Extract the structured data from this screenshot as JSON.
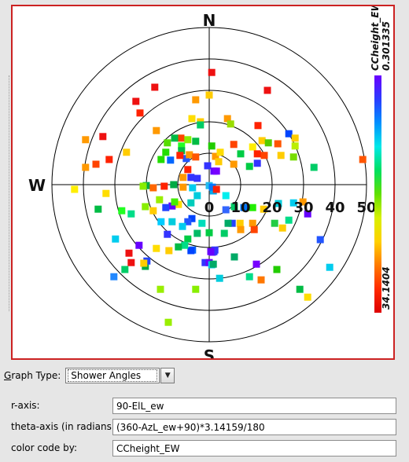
{
  "chart_data": {
    "type": "scatter",
    "coordinate_system": "polar",
    "r_ticks": [
      0,
      10,
      20,
      30,
      40,
      50
    ],
    "r_range": [
      0,
      50
    ],
    "compass_labels": {
      "north": "N",
      "south": "S",
      "west": "W"
    },
    "colorbar": {
      "title": "CCheight_EW",
      "max_label": "0.301335",
      "min_label": "34.1404",
      "gradient": [
        "#6a00ff",
        "#2a3cff",
        "#0090ff",
        "#00e8e8",
        "#00e060",
        "#60e000",
        "#d8f000",
        "#ffd000",
        "#ff7a00",
        "#ff2a00",
        "#dd0000"
      ]
    },
    "grid": true,
    "points": [
      {
        "x": 0.8,
        "y": 35.7,
        "c": "#ee1111"
      },
      {
        "x": 18.5,
        "y": 30.0,
        "c": "#ee1111"
      },
      {
        "x": -17.3,
        "y": 31.0,
        "c": "#ee1111"
      },
      {
        "x": -4.3,
        "y": 27.0,
        "c": "#ff9900"
      },
      {
        "x": -23.3,
        "y": 26.5,
        "c": "#ee1111"
      },
      {
        "x": -22.0,
        "y": 22.8,
        "c": "#ff2200"
      },
      {
        "x": 0.0,
        "y": 28.5,
        "c": "#ffcc00"
      },
      {
        "x": -5.5,
        "y": 21.0,
        "c": "#ffdd00"
      },
      {
        "x": -2.8,
        "y": 20.0,
        "c": "#ffcc00"
      },
      {
        "x": -2.8,
        "y": 19.0,
        "c": "#00cc66"
      },
      {
        "x": 5.8,
        "y": 21.0,
        "c": "#ff9900"
      },
      {
        "x": 6.8,
        "y": 19.3,
        "c": "#99dd00"
      },
      {
        "x": 15.5,
        "y": 18.8,
        "c": "#ff2200"
      },
      {
        "x": 25.3,
        "y": 16.2,
        "c": "#0044ff"
      },
      {
        "x": -16.8,
        "y": 17.2,
        "c": "#ff9900"
      },
      {
        "x": -9.0,
        "y": 14.8,
        "c": "#ff4400"
      },
      {
        "x": -11.0,
        "y": 14.8,
        "c": "#00bb44"
      },
      {
        "x": -8.8,
        "y": 12.3,
        "c": "#22ff22"
      },
      {
        "x": -13.3,
        "y": 13.3,
        "c": "#55dd00"
      },
      {
        "x": -6.8,
        "y": 14.3,
        "c": "#88ee00"
      },
      {
        "x": -4.3,
        "y": 13.8,
        "c": "#00bb44"
      },
      {
        "x": 0.8,
        "y": 12.3,
        "c": "#22cc00"
      },
      {
        "x": 7.8,
        "y": 12.8,
        "c": "#ff4400"
      },
      {
        "x": 13.8,
        "y": 12.0,
        "c": "#ffee00"
      },
      {
        "x": 16.8,
        "y": 14.0,
        "c": "#ffcc00"
      },
      {
        "x": 21.8,
        "y": 13.0,
        "c": "#ff5500"
      },
      {
        "x": 18.8,
        "y": 13.3,
        "c": "#55cc00"
      },
      {
        "x": 27.3,
        "y": 14.8,
        "c": "#ffcc00"
      },
      {
        "x": 27.3,
        "y": 12.3,
        "c": "#bbee00"
      },
      {
        "x": -8.8,
        "y": 10.8,
        "c": "#00bb44"
      },
      {
        "x": -13.8,
        "y": 10.3,
        "c": "#22dd00"
      },
      {
        "x": -15.3,
        "y": 8.0,
        "c": "#22dd00"
      },
      {
        "x": -12.3,
        "y": 7.8,
        "c": "#0066ff"
      },
      {
        "x": -7.3,
        "y": 8.3,
        "c": "#2255ff"
      },
      {
        "x": -6.3,
        "y": 9.5,
        "c": "#ff9900"
      },
      {
        "x": -9.3,
        "y": 9.3,
        "c": "#ff2200"
      },
      {
        "x": -4.3,
        "y": 8.8,
        "c": "#ff5500"
      },
      {
        "x": -6.8,
        "y": 4.8,
        "c": "#ff2200"
      },
      {
        "x": -5.8,
        "y": 2.3,
        "c": "#3333ff"
      },
      {
        "x": -3.8,
        "y": 2.0,
        "c": "#3333ff"
      },
      {
        "x": 2.0,
        "y": 9.0,
        "c": "#ff9900"
      },
      {
        "x": 3.5,
        "y": 10.3,
        "c": "#ffdd00"
      },
      {
        "x": 3.0,
        "y": 7.3,
        "c": "#ffcc00"
      },
      {
        "x": -0.5,
        "y": 6.0,
        "c": "#3333ff"
      },
      {
        "x": 1.5,
        "y": 4.3,
        "c": "#6600ff"
      },
      {
        "x": 2.3,
        "y": 4.3,
        "c": "#7700ff"
      },
      {
        "x": 7.8,
        "y": 6.5,
        "c": "#ff9900"
      },
      {
        "x": 10.0,
        "y": 9.8,
        "c": "#00cc44"
      },
      {
        "x": 15.3,
        "y": 9.8,
        "c": "#ff2200"
      },
      {
        "x": 17.5,
        "y": 9.3,
        "c": "#ff4400"
      },
      {
        "x": 22.8,
        "y": 9.3,
        "c": "#ffcc00"
      },
      {
        "x": 26.8,
        "y": 8.8,
        "c": "#77dd00"
      },
      {
        "x": 12.8,
        "y": 5.8,
        "c": "#00cc44"
      },
      {
        "x": 15.3,
        "y": 6.8,
        "c": "#3333ff"
      },
      {
        "x": 33.3,
        "y": 5.5,
        "c": "#00cc66"
      },
      {
        "x": 48.8,
        "y": 8.0,
        "c": "#ff5500"
      },
      {
        "x": -39.3,
        "y": 14.3,
        "c": "#ff9900"
      },
      {
        "x": -33.8,
        "y": 15.3,
        "c": "#ee1111"
      },
      {
        "x": -39.3,
        "y": 5.5,
        "c": "#ff9900"
      },
      {
        "x": -36.0,
        "y": 6.5,
        "c": "#ff4400"
      },
      {
        "x": -31.8,
        "y": 8.0,
        "c": "#ff2200"
      },
      {
        "x": -26.3,
        "y": 10.3,
        "c": "#ffcc00"
      },
      {
        "x": -42.8,
        "y": -1.5,
        "c": "#ffee00"
      },
      {
        "x": -32.8,
        "y": -2.8,
        "c": "#ffdd00"
      },
      {
        "x": -20.0,
        "y": -0.3,
        "c": "#00aa44"
      },
      {
        "x": -21.0,
        "y": -0.5,
        "c": "#88ee00"
      },
      {
        "x": -17.8,
        "y": -1.0,
        "c": "#ff6600"
      },
      {
        "x": -14.3,
        "y": -0.5,
        "c": "#ff2200"
      },
      {
        "x": -11.3,
        "y": 0.0,
        "c": "#00aa44"
      },
      {
        "x": -8.3,
        "y": -0.8,
        "c": "#ff9900"
      },
      {
        "x": -8.3,
        "y": 2.3,
        "c": "#ff9900"
      },
      {
        "x": -5.3,
        "y": -1.0,
        "c": "#00ccee"
      },
      {
        "x": -3.8,
        "y": -3.5,
        "c": "#00ccdd"
      },
      {
        "x": 0.0,
        "y": -0.3,
        "c": "#22bbee"
      },
      {
        "x": 1.3,
        "y": -2.0,
        "c": "#00aaee"
      },
      {
        "x": 1.0,
        "y": -0.8,
        "c": "#0077ff"
      },
      {
        "x": 2.3,
        "y": -1.5,
        "c": "#ff2200"
      },
      {
        "x": -5.8,
        "y": -5.8,
        "c": "#00ccbb"
      },
      {
        "x": -9.8,
        "y": -6.3,
        "c": "#ffdd00"
      },
      {
        "x": -11.8,
        "y": -6.8,
        "c": "#6600ff"
      },
      {
        "x": -13.8,
        "y": -7.3,
        "c": "#2244ff"
      },
      {
        "x": -17.8,
        "y": -8.3,
        "c": "#ffcc00"
      },
      {
        "x": -20.3,
        "y": -7.0,
        "c": "#88ee00"
      },
      {
        "x": -15.8,
        "y": -4.8,
        "c": "#99ee00"
      },
      {
        "x": -11.0,
        "y": -5.5,
        "c": "#44ee00"
      },
      {
        "x": -35.3,
        "y": -7.8,
        "c": "#00bb44"
      },
      {
        "x": -27.8,
        "y": -8.3,
        "c": "#22ff22"
      },
      {
        "x": -24.8,
        "y": -9.3,
        "c": "#00dd88"
      },
      {
        "x": 5.3,
        "y": -3.5,
        "c": "#00eeee"
      },
      {
        "x": 5.3,
        "y": -8.0,
        "c": "#3366ff"
      },
      {
        "x": 8.0,
        "y": -7.0,
        "c": "#00cc66"
      },
      {
        "x": 11.0,
        "y": -7.3,
        "c": "#0077ff"
      },
      {
        "x": 13.8,
        "y": -7.3,
        "c": "#22ee00"
      },
      {
        "x": 17.3,
        "y": -7.8,
        "c": "#ffcc00"
      },
      {
        "x": 22.0,
        "y": -6.0,
        "c": "#00ccdd"
      },
      {
        "x": 26.8,
        "y": -5.8,
        "c": "#00ccee"
      },
      {
        "x": 29.8,
        "y": -5.5,
        "c": "#ff9900"
      },
      {
        "x": 31.3,
        "y": -9.3,
        "c": "#6600ff"
      },
      {
        "x": 25.3,
        "y": -11.3,
        "c": "#00dd88"
      },
      {
        "x": 20.8,
        "y": -12.3,
        "c": "#22cc44"
      },
      {
        "x": 23.3,
        "y": -13.8,
        "c": "#ffcc00"
      },
      {
        "x": 13.8,
        "y": -12.3,
        "c": "#ff9900"
      },
      {
        "x": 9.8,
        "y": -12.3,
        "c": "#ffcc00"
      },
      {
        "x": 7.3,
        "y": -12.3,
        "c": "#2244ff"
      },
      {
        "x": 6.0,
        "y": -12.3,
        "c": "#00aa66"
      },
      {
        "x": 14.3,
        "y": -14.3,
        "c": "#ff4400"
      },
      {
        "x": 4.8,
        "y": -15.5,
        "c": "#00cc66"
      },
      {
        "x": 0.0,
        "y": -15.3,
        "c": "#00cc44"
      },
      {
        "x": -2.3,
        "y": -12.3,
        "c": "#00ddbb"
      },
      {
        "x": -5.5,
        "y": -10.8,
        "c": "#0044ff"
      },
      {
        "x": -6.8,
        "y": -11.8,
        "c": "#2255ff"
      },
      {
        "x": -8.5,
        "y": -13.3,
        "c": "#00ccee"
      },
      {
        "x": -11.8,
        "y": -11.8,
        "c": "#00ccdd"
      },
      {
        "x": -15.3,
        "y": -11.8,
        "c": "#00ccff"
      },
      {
        "x": -13.3,
        "y": -15.8,
        "c": "#3333ff"
      },
      {
        "x": -6.8,
        "y": -17.3,
        "c": "#00cc44"
      },
      {
        "x": -3.8,
        "y": -15.5,
        "c": "#00bb66"
      },
      {
        "x": -5.3,
        "y": -20.8,
        "c": "#0066ff"
      },
      {
        "x": -5.8,
        "y": -21.0,
        "c": "#0044ff"
      },
      {
        "x": -7.8,
        "y": -19.3,
        "c": "#00dd88"
      },
      {
        "x": -9.8,
        "y": -19.8,
        "c": "#00bb44"
      },
      {
        "x": -12.8,
        "y": -21.0,
        "c": "#ffcc00"
      },
      {
        "x": -16.8,
        "y": -20.3,
        "c": "#ffdd00"
      },
      {
        "x": -22.3,
        "y": -19.3,
        "c": "#6600ff"
      },
      {
        "x": -29.8,
        "y": -17.3,
        "c": "#00ccee"
      },
      {
        "x": -24.8,
        "y": -24.8,
        "c": "#ee1111"
      },
      {
        "x": -20.3,
        "y": -26.0,
        "c": "#00aa44"
      },
      {
        "x": -19.8,
        "y": -24.3,
        "c": "#2244ff"
      },
      {
        "x": -20.8,
        "y": -25.0,
        "c": "#ffcc00"
      },
      {
        "x": -25.5,
        "y": -21.8,
        "c": "#ee1111"
      },
      {
        "x": 1.3,
        "y": -21.3,
        "c": "#00dd88"
      },
      {
        "x": 1.0,
        "y": -21.5,
        "c": "#6600ff"
      },
      {
        "x": 1.5,
        "y": -21.3,
        "c": "#3333ff"
      },
      {
        "x": 1.8,
        "y": -20.8,
        "c": "#3333ff"
      },
      {
        "x": 0.5,
        "y": -21.3,
        "c": "#6600ff"
      },
      {
        "x": -1.3,
        "y": -24.8,
        "c": "#3333ff"
      },
      {
        "x": 0.0,
        "y": -24.8,
        "c": "#6600ff"
      },
      {
        "x": 0.8,
        "y": -25.5,
        "c": "#00ccee"
      },
      {
        "x": 1.3,
        "y": -25.3,
        "c": "#00aa66"
      },
      {
        "x": 8.0,
        "y": -23.0,
        "c": "#00aa66"
      },
      {
        "x": 15.0,
        "y": -25.3,
        "c": "#7700ff"
      },
      {
        "x": 12.8,
        "y": -29.3,
        "c": "#00dd88"
      },
      {
        "x": 16.5,
        "y": -30.3,
        "c": "#ff7700"
      },
      {
        "x": -30.3,
        "y": -29.3,
        "c": "#2288ff"
      },
      {
        "x": -26.8,
        "y": -27.0,
        "c": "#00cc66"
      },
      {
        "x": -15.5,
        "y": -33.3,
        "c": "#99ee00"
      },
      {
        "x": -4.3,
        "y": -33.3,
        "c": "#88ee00"
      },
      {
        "x": 3.3,
        "y": -29.8,
        "c": "#00ccdd"
      },
      {
        "x": -13.0,
        "y": -43.8,
        "c": "#99ee00"
      },
      {
        "x": 31.3,
        "y": -35.8,
        "c": "#ffdd00"
      },
      {
        "x": 28.8,
        "y": -33.3,
        "c": "#00bb44"
      },
      {
        "x": 35.3,
        "y": -17.5,
        "c": "#2255ff"
      },
      {
        "x": 38.3,
        "y": -26.3,
        "c": "#00ccee"
      },
      {
        "x": 21.5,
        "y": -27.0,
        "c": "#22cc00"
      },
      {
        "x": 10.0,
        "y": -14.3,
        "c": "#ff9900"
      }
    ]
  },
  "controls": {
    "graph_type_label_mnemonic": "G",
    "graph_type_label_rest": "raph Type:",
    "graph_type_value": "Shower Angles",
    "r_axis_label": "r-axis:",
    "r_axis_value": "90-ElL_ew",
    "theta_axis_label": "theta-axis (in radians):",
    "theta_axis_value": "(360-AzL_ew+90)*3.14159/180",
    "color_code_label": "color code by:",
    "color_code_value": "CCheight_EW"
  }
}
